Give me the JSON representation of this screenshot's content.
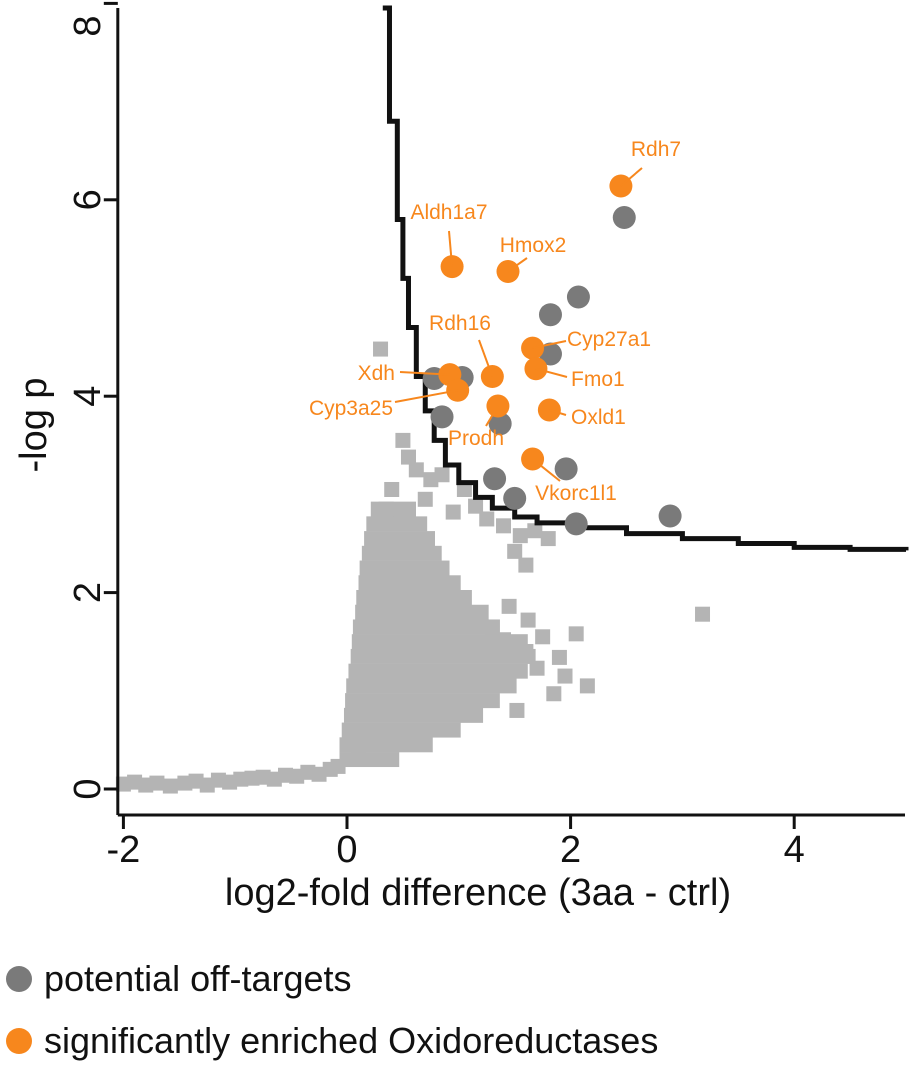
{
  "chart_data": {
    "type": "scatter",
    "xlabel": "log2-fold difference (3aa - ctrl)",
    "ylabel": "-log p",
    "xlim": [
      -2.05,
      5.0
    ],
    "ylim": [
      -0.2,
      8.0
    ],
    "xticks": [
      -2,
      0,
      2,
      4
    ],
    "yticks": [
      0,
      2,
      4,
      6,
      8
    ],
    "grid": false,
    "legend_position": "bottom",
    "colors": {
      "background_points": "#b4b4b4",
      "off_targets": "#7a7a7a",
      "enriched": "#f7871d",
      "threshold": "#111111",
      "axis": "#111111"
    },
    "series": [
      {
        "name": "potential off-targets",
        "marker": "circle",
        "points": [
          [
            2.48,
            5.82
          ],
          [
            2.07,
            5.01
          ],
          [
            1.82,
            4.83
          ],
          [
            1.82,
            4.43
          ],
          [
            0.78,
            4.18
          ],
          [
            1.03,
            4.19
          ],
          [
            0.85,
            3.79
          ],
          [
            1.37,
            3.72
          ],
          [
            1.96,
            3.26
          ],
          [
            1.32,
            3.16
          ],
          [
            1.5,
            2.96
          ],
          [
            2.89,
            2.78
          ],
          [
            2.05,
            2.7
          ]
        ]
      },
      {
        "name": "significantly enriched Oxidoreductases",
        "marker": "circle",
        "points": [
          {
            "label": "Rdh7",
            "x": 2.45,
            "y": 6.14
          },
          {
            "label": "Aldh1a7",
            "x": 0.94,
            "y": 5.32
          },
          {
            "label": "Hmox2",
            "x": 1.44,
            "y": 5.27
          },
          {
            "label": "Cyp27a1",
            "x": 1.66,
            "y": 4.49
          },
          {
            "label": "Fmo1",
            "x": 1.69,
            "y": 4.28
          },
          {
            "label": "Rdh16",
            "x": 1.3,
            "y": 4.2
          },
          {
            "label": "Xdh",
            "x": 0.92,
            "y": 4.22
          },
          {
            "label": "Cyp3a25",
            "x": 0.99,
            "y": 4.06
          },
          {
            "label": "Oxld1",
            "x": 1.81,
            "y": 3.86
          },
          {
            "label": "Prodh",
            "x": 1.35,
            "y": 3.9
          },
          {
            "label": "Vkorc1l1",
            "x": 1.66,
            "y": 3.36
          }
        ]
      }
    ],
    "background_points": [
      [
        -2.0,
        0.05
      ],
      [
        -1.9,
        0.07
      ],
      [
        -1.8,
        0.04
      ],
      [
        -1.7,
        0.06
      ],
      [
        -1.58,
        0.03
      ],
      [
        -1.45,
        0.06
      ],
      [
        -1.35,
        0.08
      ],
      [
        -1.25,
        0.04
      ],
      [
        -1.15,
        0.09
      ],
      [
        -1.05,
        0.07
      ],
      [
        -0.95,
        0.1
      ],
      [
        -0.85,
        0.11
      ],
      [
        -0.75,
        0.12
      ],
      [
        -0.65,
        0.1
      ],
      [
        -0.55,
        0.14
      ],
      [
        -0.45,
        0.13
      ],
      [
        -0.35,
        0.17
      ],
      [
        -0.25,
        0.15
      ],
      [
        -0.15,
        0.2
      ],
      [
        -0.08,
        0.23
      ],
      [
        0.3,
        4.48
      ],
      [
        0.5,
        3.55
      ],
      [
        0.55,
        3.38
      ],
      [
        0.62,
        3.25
      ],
      [
        0.75,
        3.15
      ],
      [
        0.4,
        3.05
      ],
      [
        0.85,
        3.2
      ],
      [
        0.7,
        2.95
      ],
      [
        0.95,
        2.82
      ],
      [
        1.05,
        3.05
      ],
      [
        1.15,
        2.88
      ],
      [
        0.35,
        2.85
      ],
      [
        1.25,
        2.75
      ],
      [
        1.4,
        2.68
      ],
      [
        1.55,
        2.58
      ],
      [
        1.68,
        2.63
      ],
      [
        1.8,
        2.55
      ],
      [
        1.5,
        2.42
      ],
      [
        1.6,
        2.28
      ],
      [
        1.45,
        1.86
      ],
      [
        1.62,
        1.72
      ],
      [
        1.3,
        1.65
      ],
      [
        1.75,
        1.55
      ],
      [
        1.4,
        1.52
      ],
      [
        1.9,
        1.34
      ],
      [
        1.6,
        1.4
      ],
      [
        1.7,
        1.23
      ],
      [
        1.95,
        1.15
      ],
      [
        2.05,
        1.58
      ],
      [
        2.15,
        1.05
      ],
      [
        1.85,
        0.97
      ],
      [
        1.52,
        0.8
      ],
      [
        1.05,
        0.88
      ],
      [
        3.18,
        1.78
      ],
      [
        0.15,
        0.55
      ],
      [
        0.1,
        0.32
      ],
      [
        0.2,
        0.78
      ]
    ],
    "background_bands": [
      {
        "y": 0.3,
        "x_from": 0.0,
        "x_to": 0.4
      },
      {
        "y": 0.45,
        "x_from": 0.0,
        "x_to": 0.7
      },
      {
        "y": 0.6,
        "x_from": 0.02,
        "x_to": 0.95
      },
      {
        "y": 0.75,
        "x_from": 0.04,
        "x_to": 1.15
      },
      {
        "y": 0.9,
        "x_from": 0.05,
        "x_to": 1.3
      },
      {
        "y": 1.05,
        "x_from": 0.06,
        "x_to": 1.45
      },
      {
        "y": 1.2,
        "x_from": 0.08,
        "x_to": 1.55
      },
      {
        "y": 1.35,
        "x_from": 0.1,
        "x_to": 1.62
      },
      {
        "y": 1.5,
        "x_from": 0.11,
        "x_to": 1.55
      },
      {
        "y": 1.65,
        "x_from": 0.12,
        "x_to": 1.3
      },
      {
        "y": 1.8,
        "x_from": 0.14,
        "x_to": 1.2
      },
      {
        "y": 1.95,
        "x_from": 0.15,
        "x_to": 1.05
      },
      {
        "y": 2.1,
        "x_from": 0.17,
        "x_to": 0.95
      },
      {
        "y": 2.25,
        "x_from": 0.18,
        "x_to": 0.85
      },
      {
        "y": 2.4,
        "x_from": 0.2,
        "x_to": 0.78
      },
      {
        "y": 2.55,
        "x_from": 0.22,
        "x_to": 0.72
      },
      {
        "y": 2.7,
        "x_from": 0.24,
        "x_to": 0.65
      },
      {
        "y": 2.85,
        "x_from": 0.28,
        "x_to": 0.55
      }
    ],
    "threshold_curve": [
      [
        0.32,
        8.0
      ],
      [
        0.38,
        6.8
      ],
      [
        0.45,
        5.8
      ],
      [
        0.5,
        5.2
      ],
      [
        0.55,
        4.7
      ],
      [
        0.62,
        4.2
      ],
      [
        0.7,
        3.85
      ],
      [
        0.78,
        3.55
      ],
      [
        0.88,
        3.3
      ],
      [
        1.0,
        3.12
      ],
      [
        1.15,
        2.97
      ],
      [
        1.3,
        2.86
      ],
      [
        1.5,
        2.77
      ],
      [
        1.7,
        2.71
      ],
      [
        2.0,
        2.66
      ],
      [
        2.5,
        2.6
      ],
      [
        3.0,
        2.55
      ],
      [
        3.5,
        2.5
      ],
      [
        4.0,
        2.46
      ],
      [
        4.5,
        2.44
      ],
      [
        5.0,
        2.43
      ]
    ]
  }
}
